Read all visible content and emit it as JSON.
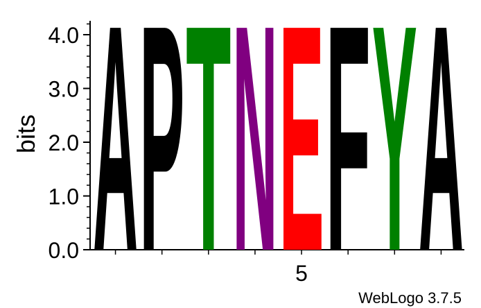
{
  "chart_data": {
    "type": "sequence-logo",
    "ylabel": "bits",
    "ylim": [
      0,
      4.3
    ],
    "yticks": [
      {
        "value": 0.0,
        "label": "0.0"
      },
      {
        "value": 1.0,
        "label": "1.0"
      },
      {
        "value": 2.0,
        "label": "2.0"
      },
      {
        "value": 3.0,
        "label": "3.0"
      },
      {
        "value": 4.0,
        "label": "4.0"
      }
    ],
    "xtick_labels": [
      {
        "position": 5,
        "label": "5"
      }
    ],
    "positions": [
      {
        "position": 1,
        "letter": "A",
        "bits": 4.32,
        "color": "#000000"
      },
      {
        "position": 2,
        "letter": "P",
        "bits": 4.32,
        "color": "#000000"
      },
      {
        "position": 3,
        "letter": "T",
        "bits": 4.32,
        "color": "#008000"
      },
      {
        "position": 4,
        "letter": "N",
        "bits": 4.32,
        "color": "#800080"
      },
      {
        "position": 5,
        "letter": "E",
        "bits": 4.32,
        "color": "#ff0000"
      },
      {
        "position": 6,
        "letter": "F",
        "bits": 4.32,
        "color": "#000000"
      },
      {
        "position": 7,
        "letter": "Y",
        "bits": 4.32,
        "color": "#008000"
      },
      {
        "position": 8,
        "letter": "A",
        "bits": 4.32,
        "color": "#000000"
      }
    ]
  },
  "footer": {
    "credit": "WebLogo 3.7.5"
  }
}
